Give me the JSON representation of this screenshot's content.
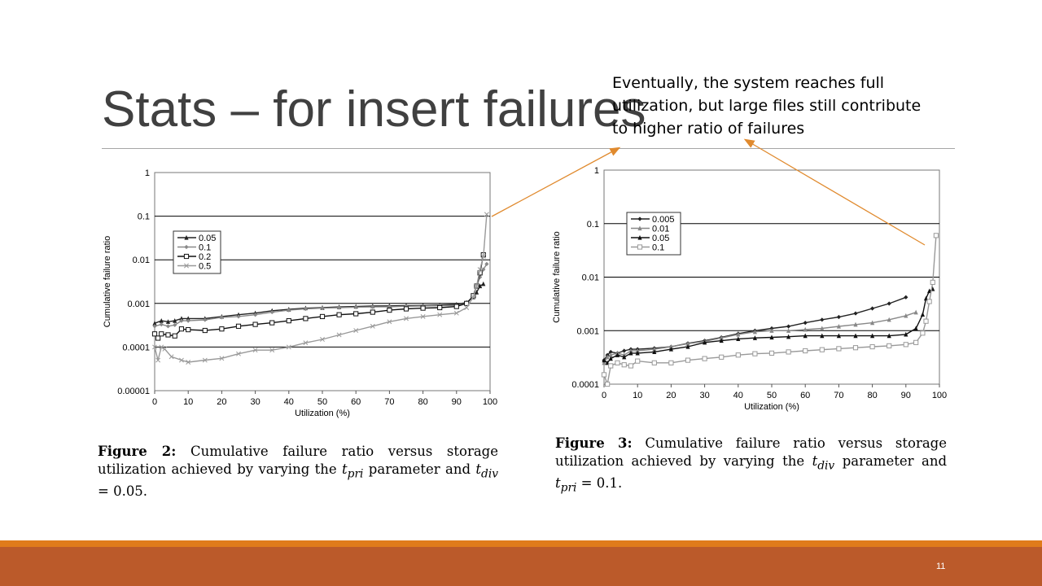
{
  "slide": {
    "title": "Stats – for insert failures",
    "annotation": "Eventually, the system reaches full utilization, but large files still contribute to higher ratio of failures",
    "slide_number": "11",
    "colors": {
      "title": "#404040",
      "accent_orange": "#e07b1b",
      "footer": "#bb5a2a",
      "arrow": "#e08a2e"
    }
  },
  "captions": [
    {
      "label": "Figure 2:",
      "lines": [
        "Cumulative failure ratio versus storage",
        "utilization achieved by varying the",
        "parameter",
        "and"
      ],
      "var1": "t",
      "sub1": "pri",
      "var2": "t",
      "sub2": "div",
      "eq": "= 0.05."
    },
    {
      "label": "Figure 3:",
      "lines": [
        "Cumulative failure ratio versus storage",
        "utilization achieved by varying the",
        "parameter",
        "and"
      ],
      "var1": "t",
      "sub1": "div",
      "var2": "t",
      "sub2": "pri",
      "eq": "= 0.1."
    }
  ],
  "chart_data": [
    {
      "type": "line",
      "xlabel": "Utilization (%)",
      "ylabel": "Cumulative failure ratio",
      "x_ticks": [
        "0",
        "10",
        "20",
        "30",
        "40",
        "50",
        "60",
        "70",
        "80",
        "90",
        "100"
      ],
      "y_ticks": [
        "1",
        "0.1",
        "0.01",
        "0.001",
        "0.0001",
        "0.00001"
      ],
      "xlim": [
        0,
        100
      ],
      "ylim": [
        1e-05,
        1
      ],
      "y_scale": "log",
      "legend_position": "upper-left",
      "series": [
        {
          "name": "0.05",
          "color": "#222222",
          "marker": "triangle",
          "x": [
            0,
            2,
            4,
            6,
            8,
            10,
            15,
            20,
            25,
            30,
            35,
            40,
            45,
            50,
            55,
            60,
            65,
            70,
            75,
            80,
            85,
            90,
            93,
            95,
            96,
            97,
            98
          ],
          "y": [
            0.00035,
            0.0004,
            0.00038,
            0.0004,
            0.00045,
            0.00045,
            0.00045,
            0.0005,
            0.00055,
            0.0006,
            0.00068,
            0.00073,
            0.00078,
            0.0008,
            0.00083,
            0.00085,
            0.00087,
            0.00088,
            0.00089,
            0.0009,
            0.00092,
            0.00095,
            0.00105,
            0.0014,
            0.0018,
            0.0025,
            0.0028
          ]
        },
        {
          "name": "0.1",
          "color": "#888888",
          "marker": "diamond",
          "x": [
            0,
            2,
            4,
            6,
            8,
            10,
            15,
            20,
            25,
            30,
            35,
            40,
            45,
            50,
            55,
            60,
            65,
            70,
            75,
            80,
            85,
            90,
            93,
            95,
            96,
            97,
            98,
            99
          ],
          "y": [
            0.0003,
            0.00033,
            0.0003,
            0.00032,
            0.0004,
            0.0004,
            0.00042,
            0.00048,
            0.0005,
            0.00055,
            0.00063,
            0.0007,
            0.00075,
            0.00078,
            0.0008,
            0.00082,
            0.00083,
            0.00084,
            0.00086,
            0.00087,
            0.00089,
            0.0009,
            0.001,
            0.0015,
            0.0025,
            0.004,
            0.006,
            0.008
          ]
        },
        {
          "name": "0.2",
          "color": "#111111",
          "marker": "square",
          "x": [
            0,
            1,
            2,
            4,
            6,
            8,
            10,
            15,
            20,
            25,
            30,
            35,
            40,
            45,
            50,
            55,
            60,
            65,
            70,
            75,
            80,
            85,
            90,
            93,
            95,
            96,
            97,
            98
          ],
          "y": [
            0.0002,
            0.00016,
            0.0002,
            0.00019,
            0.00018,
            0.00026,
            0.00025,
            0.00024,
            0.00026,
            0.0003,
            0.00033,
            0.00036,
            0.0004,
            0.00045,
            0.0005,
            0.00055,
            0.00058,
            0.00063,
            0.0007,
            0.00075,
            0.00078,
            0.0008,
            0.00085,
            0.001,
            0.0015,
            0.0025,
            0.005,
            0.013
          ]
        },
        {
          "name": "0.5",
          "color": "#999999",
          "marker": "x",
          "x": [
            0,
            1,
            2,
            3,
            5,
            8,
            10,
            15,
            20,
            25,
            30,
            35,
            40,
            45,
            50,
            55,
            60,
            65,
            70,
            75,
            80,
            85,
            90,
            93,
            95,
            96,
            97,
            98,
            99
          ],
          "y": [
            0.0001,
            5e-05,
            0.0001,
            9e-05,
            6e-05,
            5e-05,
            4.5e-05,
            5e-05,
            5.5e-05,
            7e-05,
            8.5e-05,
            8.5e-05,
            0.0001,
            0.000125,
            0.00015,
            0.00019,
            0.00024,
            0.0003,
            0.00038,
            0.00045,
            0.0005,
            0.00055,
            0.0006,
            0.0008,
            0.0014,
            0.0025,
            0.006,
            0.012,
            0.11
          ]
        }
      ]
    },
    {
      "type": "line",
      "xlabel": "Utilization (%)",
      "ylabel": "Cumulative failure ratio",
      "x_ticks": [
        "0",
        "10",
        "20",
        "30",
        "40",
        "50",
        "60",
        "70",
        "80",
        "90",
        "100"
      ],
      "y_ticks": [
        "1",
        "0.1",
        "0.01",
        "0.001",
        "0.0001"
      ],
      "xlim": [
        0,
        100
      ],
      "ylim": [
        0.0001,
        1
      ],
      "y_scale": "log",
      "legend_position": "upper-left",
      "series": [
        {
          "name": "0.005",
          "color": "#222222",
          "marker": "diamond",
          "x": [
            0,
            1,
            2,
            4,
            6,
            8,
            10,
            15,
            20,
            25,
            30,
            35,
            40,
            45,
            50,
            55,
            60,
            65,
            70,
            75,
            80,
            85,
            90
          ],
          "y": [
            0.00028,
            0.00035,
            0.0004,
            0.00038,
            0.00042,
            0.00045,
            0.00045,
            0.00047,
            0.0005,
            0.00058,
            0.00065,
            0.00075,
            0.00088,
            0.001,
            0.0011,
            0.0012,
            0.0014,
            0.0016,
            0.0018,
            0.0021,
            0.0026,
            0.0032,
            0.0042
          ]
        },
        {
          "name": "0.01",
          "color": "#888888",
          "marker": "triangle",
          "x": [
            0,
            1,
            2,
            4,
            6,
            8,
            10,
            15,
            20,
            25,
            30,
            35,
            40,
            45,
            50,
            55,
            60,
            65,
            70,
            75,
            80,
            85,
            90,
            93
          ],
          "y": [
            0.00025,
            0.00032,
            0.00035,
            0.00038,
            0.00035,
            0.00042,
            0.00042,
            0.00045,
            0.0005,
            0.00057,
            0.00063,
            0.00073,
            0.00085,
            0.00095,
            0.001,
            0.001,
            0.00105,
            0.0011,
            0.0012,
            0.0013,
            0.0014,
            0.0016,
            0.0019,
            0.0022
          ]
        },
        {
          "name": "0.05",
          "color": "#111111",
          "marker": "triangle",
          "x": [
            0,
            1,
            2,
            4,
            6,
            8,
            10,
            15,
            20,
            25,
            30,
            35,
            40,
            45,
            50,
            55,
            60,
            65,
            70,
            75,
            80,
            85,
            90,
            93,
            95,
            96,
            97,
            98
          ],
          "y": [
            0.00028,
            0.00025,
            0.0003,
            0.00035,
            0.00032,
            0.00038,
            0.00038,
            0.0004,
            0.00045,
            0.0005,
            0.0006,
            0.00065,
            0.0007,
            0.00073,
            0.00075,
            0.00077,
            0.0008,
            0.0008,
            0.0008,
            0.0008,
            0.0008,
            0.0008,
            0.00085,
            0.0011,
            0.002,
            0.004,
            0.0055,
            0.006
          ]
        },
        {
          "name": "0.1",
          "color": "#999999",
          "marker": "square",
          "x": [
            0,
            1,
            2,
            4,
            6,
            8,
            10,
            15,
            20,
            25,
            30,
            35,
            40,
            45,
            50,
            55,
            60,
            65,
            70,
            75,
            80,
            85,
            90,
            93,
            95,
            96,
            97,
            98,
            99
          ],
          "y": [
            0.00015,
            0.0001,
            0.00022,
            0.00025,
            0.00023,
            0.00022,
            0.00027,
            0.00025,
            0.00025,
            0.00028,
            0.0003,
            0.00032,
            0.00035,
            0.00037,
            0.00038,
            0.0004,
            0.00042,
            0.00044,
            0.00046,
            0.00048,
            0.0005,
            0.00052,
            0.00055,
            0.0006,
            0.0009,
            0.0015,
            0.0035,
            0.008,
            0.06
          ]
        }
      ]
    }
  ]
}
